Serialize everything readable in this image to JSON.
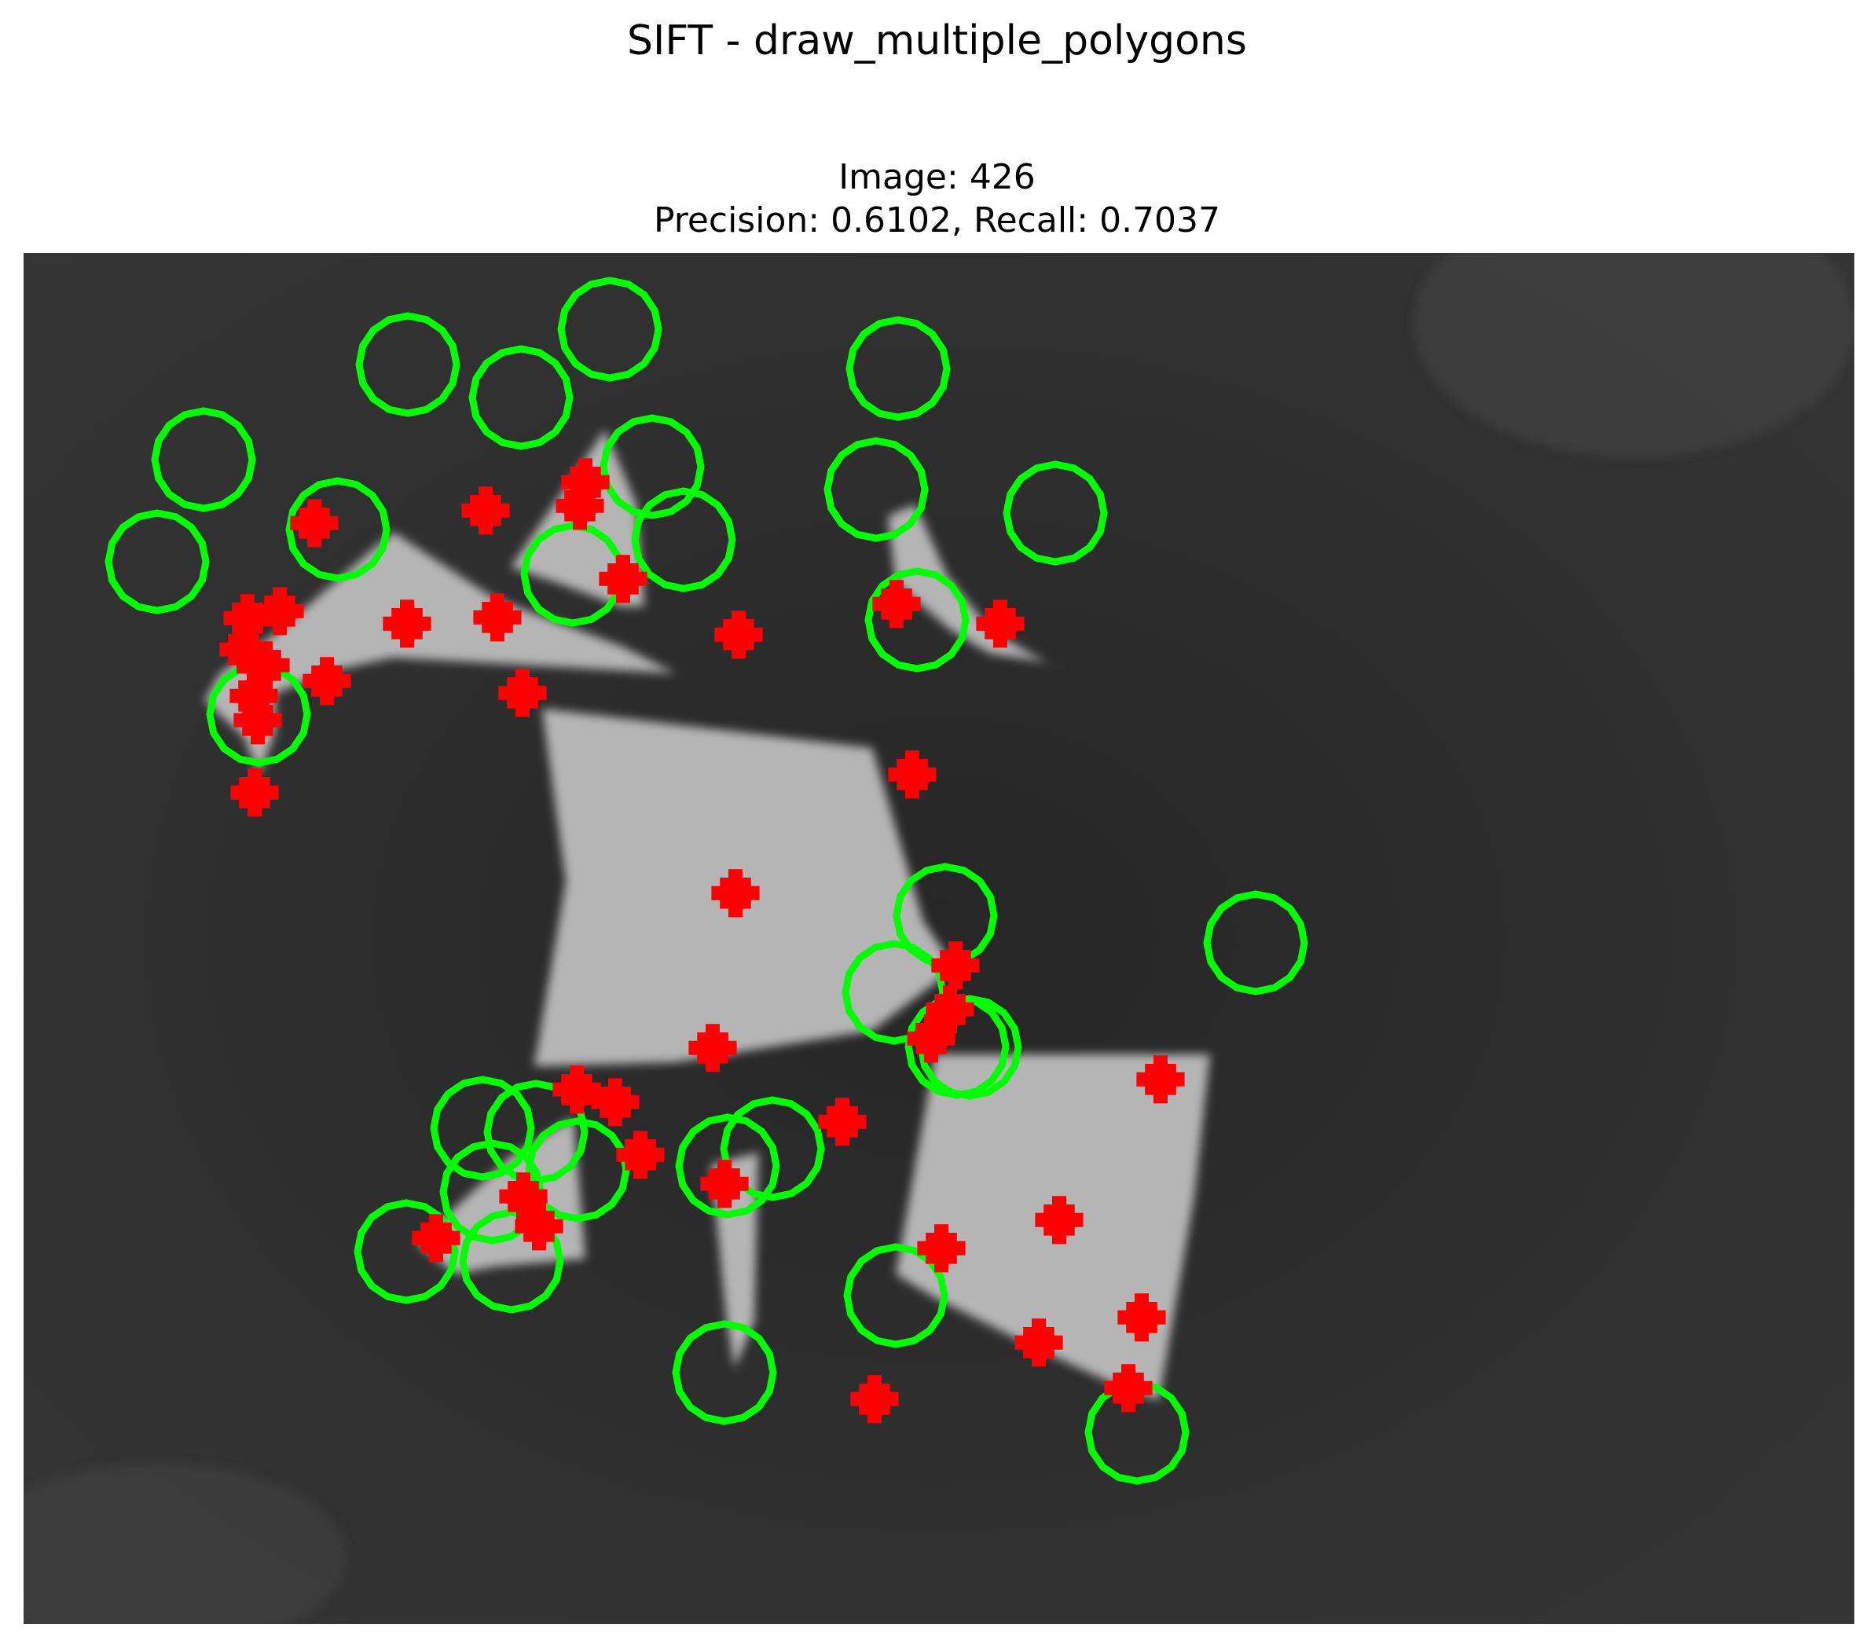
{
  "figure": {
    "suptitle": "SIFT - draw_multiple_polygons",
    "subtitle_line1": "Image: 426",
    "subtitle_line2": "Precision: 0.6102, Recall: 0.7037"
  },
  "colors": {
    "background": "#2b2b2b",
    "shape_fill": "#b5b5b5",
    "ground_truth_marker": "#00ff00",
    "detected_keypoint": "#ff0000"
  }
}
